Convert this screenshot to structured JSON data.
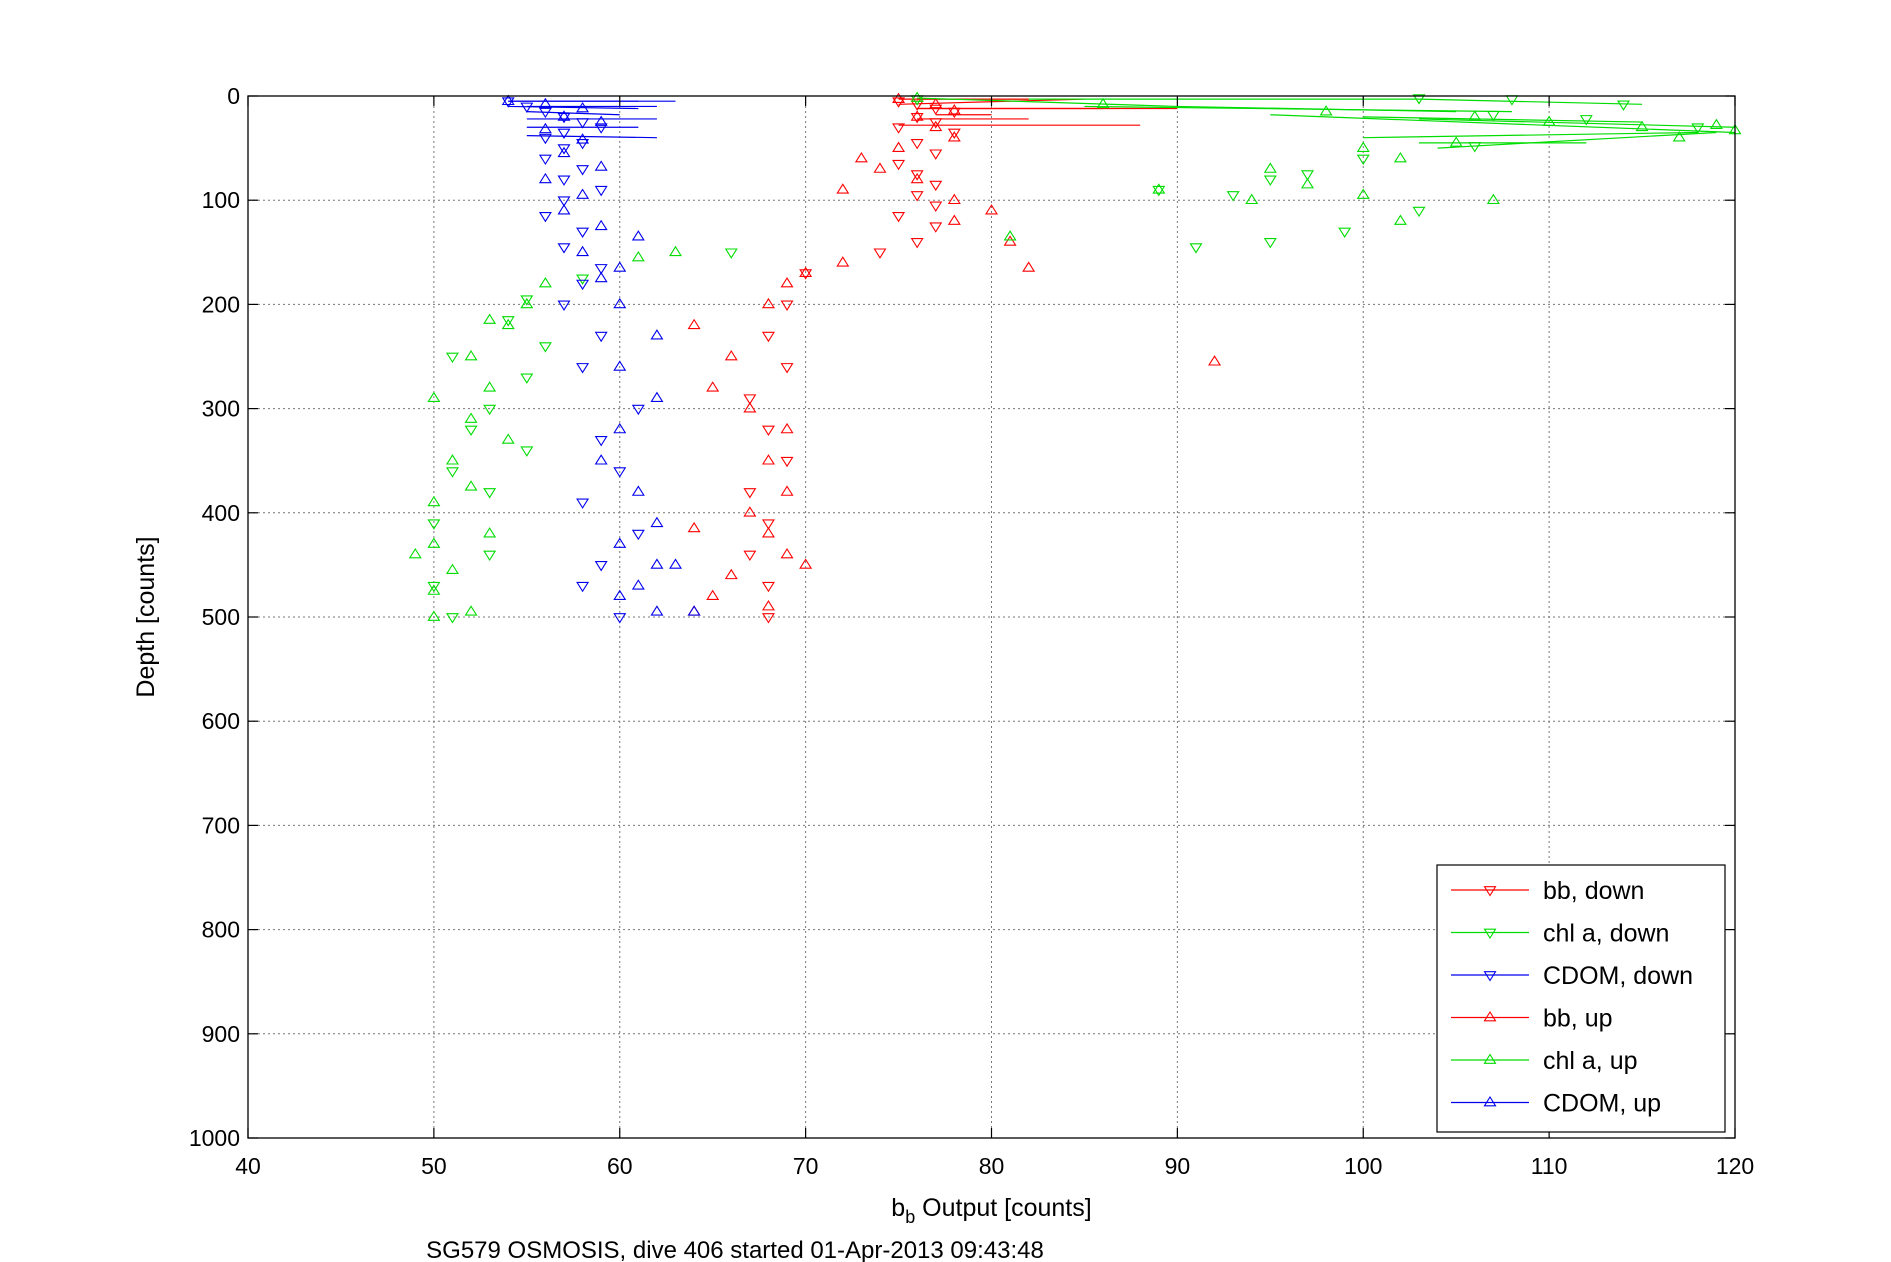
{
  "chart_data": {
    "type": "scatter",
    "title": "",
    "xlabel_main": "b",
    "xlabel_sub": "b",
    "xlabel_rest": " Output [counts]",
    "ylabel": "Depth [counts]",
    "caption": "SG579 OSMOSIS, dive 406 started 01-Apr-2013 09:43:48",
    "xlim": [
      40,
      120
    ],
    "ylim": [
      0,
      1000
    ],
    "y_reversed": true,
    "x_ticks": [
      40,
      50,
      60,
      70,
      80,
      90,
      100,
      110,
      120
    ],
    "y_ticks": [
      0,
      100,
      200,
      300,
      400,
      500,
      600,
      700,
      800,
      900,
      1000
    ],
    "x_tick_labels": [
      "40",
      "50",
      "60",
      "70",
      "80",
      "90",
      "100",
      "110",
      "120"
    ],
    "y_tick_labels": [
      "0",
      "100",
      "200",
      "300",
      "400",
      "500",
      "600",
      "700",
      "800",
      "900",
      "1000"
    ],
    "grid": true,
    "legend_position": "bottom-right",
    "series": [
      {
        "name": "bb, down",
        "color": "#ff0000",
        "marker": "triangle-down",
        "points": [
          [
            75,
            5
          ],
          [
            76,
            8
          ],
          [
            77,
            12
          ],
          [
            78,
            15
          ],
          [
            76,
            20
          ],
          [
            77,
            25
          ],
          [
            75,
            30
          ],
          [
            78,
            35
          ],
          [
            76,
            45
          ],
          [
            77,
            55
          ],
          [
            75,
            65
          ],
          [
            76,
            75
          ],
          [
            77,
            85
          ],
          [
            76,
            95
          ],
          [
            77,
            105
          ],
          [
            75,
            115
          ],
          [
            77,
            125
          ],
          [
            76,
            140
          ],
          [
            74,
            150
          ],
          [
            70,
            170
          ],
          [
            69,
            200
          ],
          [
            68,
            230
          ],
          [
            69,
            260
          ],
          [
            67,
            290
          ],
          [
            68,
            320
          ],
          [
            69,
            350
          ],
          [
            67,
            380
          ],
          [
            68,
            410
          ],
          [
            67,
            440
          ],
          [
            68,
            470
          ],
          [
            68,
            500
          ]
        ],
        "lines": [
          [
            [
              75,
              8
            ],
            [
              85,
              3
            ]
          ],
          [
            [
              76,
              12
            ],
            [
              90,
              12
            ]
          ],
          [
            [
              77,
              18
            ],
            [
              80,
              18
            ]
          ],
          [
            [
              76,
              22
            ],
            [
              82,
              22
            ]
          ],
          [
            [
              75,
              28
            ],
            [
              88,
              28
            ]
          ]
        ]
      },
      {
        "name": "chl a, down",
        "color": "#00dd00",
        "marker": "triangle-down",
        "points": [
          [
            76,
            3
          ],
          [
            103,
            2
          ],
          [
            108,
            3
          ],
          [
            114,
            8
          ],
          [
            107,
            18
          ],
          [
            112,
            22
          ],
          [
            118,
            30
          ],
          [
            106,
            48
          ],
          [
            100,
            60
          ],
          [
            97,
            75
          ],
          [
            95,
            80
          ],
          [
            93,
            95
          ],
          [
            89,
            90
          ],
          [
            103,
            110
          ],
          [
            99,
            130
          ],
          [
            95,
            140
          ],
          [
            91,
            145
          ],
          [
            66,
            150
          ],
          [
            58,
            175
          ],
          [
            55,
            195
          ],
          [
            54,
            215
          ],
          [
            56,
            240
          ],
          [
            51,
            250
          ],
          [
            55,
            270
          ],
          [
            53,
            300
          ],
          [
            52,
            320
          ],
          [
            55,
            340
          ],
          [
            51,
            360
          ],
          [
            53,
            380
          ],
          [
            50,
            410
          ],
          [
            53,
            440
          ],
          [
            50,
            470
          ],
          [
            51,
            500
          ]
        ],
        "lines": [
          [
            [
              76,
              3
            ],
            [
              103,
              3
            ]
          ],
          [
            [
              103,
              3
            ],
            [
              115,
              8
            ]
          ],
          [
            [
              85,
              10
            ],
            [
              108,
              15
            ]
          ],
          [
            [
              100,
              20
            ],
            [
              115,
              25
            ]
          ],
          [
            [
              103,
              45
            ],
            [
              112,
              45
            ]
          ]
        ]
      },
      {
        "name": "CDOM, down",
        "color": "#0000ee",
        "marker": "triangle-down",
        "points": [
          [
            54,
            5
          ],
          [
            55,
            10
          ],
          [
            56,
            15
          ],
          [
            57,
            20
          ],
          [
            58,
            25
          ],
          [
            59,
            30
          ],
          [
            57,
            35
          ],
          [
            56,
            40
          ],
          [
            58,
            45
          ],
          [
            57,
            50
          ],
          [
            56,
            60
          ],
          [
            58,
            70
          ],
          [
            57,
            80
          ],
          [
            59,
            90
          ],
          [
            57,
            100
          ],
          [
            56,
            115
          ],
          [
            58,
            130
          ],
          [
            57,
            145
          ],
          [
            59,
            165
          ],
          [
            58,
            180
          ],
          [
            57,
            200
          ],
          [
            59,
            230
          ],
          [
            58,
            260
          ],
          [
            61,
            300
          ],
          [
            59,
            330
          ],
          [
            60,
            360
          ],
          [
            58,
            390
          ],
          [
            61,
            420
          ],
          [
            59,
            450
          ],
          [
            58,
            470
          ],
          [
            60,
            500
          ]
        ],
        "lines": [
          [
            [
              54,
              5
            ],
            [
              63,
              5
            ]
          ],
          [
            [
              54,
              10
            ],
            [
              61,
              12
            ]
          ],
          [
            [
              55,
              15
            ],
            [
              60,
              18
            ]
          ],
          [
            [
              55,
              22
            ],
            [
              62,
              22
            ]
          ],
          [
            [
              55,
              30
            ],
            [
              61,
              30
            ]
          ],
          [
            [
              55,
              38
            ],
            [
              62,
              40
            ]
          ]
        ]
      },
      {
        "name": "bb, up",
        "color": "#ff0000",
        "marker": "triangle-up",
        "points": [
          [
            75,
            3
          ],
          [
            77,
            8
          ],
          [
            78,
            14
          ],
          [
            76,
            20
          ],
          [
            77,
            30
          ],
          [
            78,
            40
          ],
          [
            75,
            50
          ],
          [
            73,
            60
          ],
          [
            74,
            70
          ],
          [
            76,
            80
          ],
          [
            72,
            90
          ],
          [
            78,
            100
          ],
          [
            80,
            110
          ],
          [
            78,
            120
          ],
          [
            81,
            140
          ],
          [
            82,
            165
          ],
          [
            72,
            160
          ],
          [
            70,
            170
          ],
          [
            69,
            180
          ],
          [
            68,
            200
          ],
          [
            64,
            220
          ],
          [
            66,
            250
          ],
          [
            65,
            280
          ],
          [
            67,
            300
          ],
          [
            69,
            320
          ],
          [
            68,
            350
          ],
          [
            69,
            380
          ],
          [
            67,
            400
          ],
          [
            68,
            420
          ],
          [
            64,
            415
          ],
          [
            69,
            440
          ],
          [
            70,
            450
          ],
          [
            66,
            460
          ],
          [
            65,
            480
          ],
          [
            64,
            495
          ],
          [
            68,
            490
          ],
          [
            92,
            255
          ]
        ],
        "lines": [
          [
            [
              75,
              3
            ],
            [
              82,
              3
            ]
          ],
          [
            [
              76,
              12
            ],
            [
              86,
              12
            ]
          ]
        ]
      },
      {
        "name": "chl a, up",
        "color": "#00dd00",
        "marker": "triangle-up",
        "points": [
          [
            76,
            2
          ],
          [
            86,
            8
          ],
          [
            98,
            15
          ],
          [
            106,
            20
          ],
          [
            110,
            25
          ],
          [
            115,
            30
          ],
          [
            120,
            33
          ],
          [
            119,
            28
          ],
          [
            117,
            40
          ],
          [
            105,
            45
          ],
          [
            100,
            50
          ],
          [
            102,
            60
          ],
          [
            95,
            70
          ],
          [
            97,
            85
          ],
          [
            100,
            95
          ],
          [
            94,
            100
          ],
          [
            89,
            90
          ],
          [
            102,
            120
          ],
          [
            107,
            100
          ],
          [
            81,
            135
          ],
          [
            63,
            150
          ],
          [
            61,
            155
          ],
          [
            56,
            180
          ],
          [
            55,
            200
          ],
          [
            54,
            220
          ],
          [
            53,
            215
          ],
          [
            52,
            250
          ],
          [
            53,
            280
          ],
          [
            50,
            290
          ],
          [
            52,
            310
          ],
          [
            54,
            330
          ],
          [
            51,
            350
          ],
          [
            52,
            375
          ],
          [
            50,
            390
          ],
          [
            53,
            420
          ],
          [
            50,
            430
          ],
          [
            51,
            455
          ],
          [
            50,
            475
          ],
          [
            52,
            495
          ],
          [
            50,
            500
          ],
          [
            49,
            440
          ]
        ],
        "lines": [
          [
            [
              76,
              2
            ],
            [
              90,
              10
            ]
          ],
          [
            [
              90,
              10
            ],
            [
              105,
              15
            ]
          ],
          [
            [
              95,
              18
            ],
            [
              120,
              35
            ]
          ],
          [
            [
              103,
              22
            ],
            [
              120,
              30
            ]
          ],
          [
            [
              100,
              40
            ],
            [
              118,
              35
            ]
          ],
          [
            [
              104,
              50
            ],
            [
              119,
              35
            ]
          ]
        ]
      },
      {
        "name": "CDOM, up",
        "color": "#0000ee",
        "marker": "triangle-up",
        "points": [
          [
            54,
            5
          ],
          [
            56,
            8
          ],
          [
            58,
            12
          ],
          [
            57,
            20
          ],
          [
            59,
            25
          ],
          [
            56,
            32
          ],
          [
            58,
            42
          ],
          [
            57,
            55
          ],
          [
            59,
            68
          ],
          [
            56,
            80
          ],
          [
            58,
            95
          ],
          [
            57,
            110
          ],
          [
            59,
            125
          ],
          [
            61,
            135
          ],
          [
            58,
            150
          ],
          [
            60,
            165
          ],
          [
            59,
            175
          ],
          [
            60,
            200
          ],
          [
            62,
            230
          ],
          [
            60,
            260
          ],
          [
            62,
            290
          ],
          [
            60,
            320
          ],
          [
            59,
            350
          ],
          [
            61,
            380
          ],
          [
            62,
            410
          ],
          [
            60,
            430
          ],
          [
            62,
            450
          ],
          [
            63,
            450
          ],
          [
            61,
            470
          ],
          [
            60,
            480
          ],
          [
            62,
            495
          ],
          [
            64,
            495
          ]
        ],
        "lines": [
          [
            [
              54,
              5
            ],
            [
              61,
              5
            ]
          ],
          [
            [
              55,
              10
            ],
            [
              62,
              10
            ]
          ]
        ]
      }
    ]
  }
}
